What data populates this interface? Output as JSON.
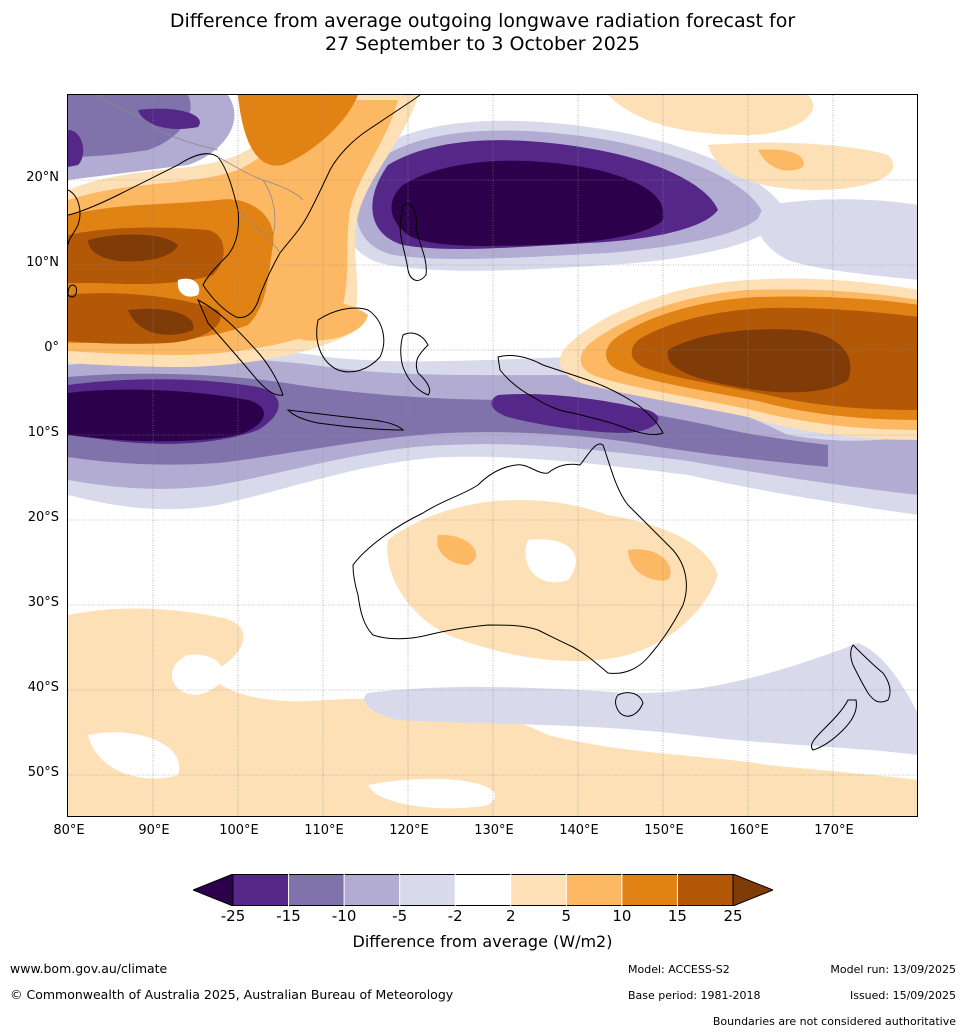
{
  "title": {
    "line1": "Difference from average outgoing longwave radiation forecast for",
    "line2": "27 September to 3 October 2025"
  },
  "map": {
    "lat_labels": [
      "20°N",
      "10°N",
      "0°",
      "10°S",
      "20°S",
      "30°S",
      "40°S",
      "50°S"
    ],
    "lon_labels": [
      "80°E",
      "90°E",
      "100°E",
      "110°E",
      "120°E",
      "130°E",
      "140°E",
      "150°E",
      "160°E",
      "170°E"
    ]
  },
  "colorbar": {
    "ticks": [
      "-25",
      "-15",
      "-10",
      "-5",
      "-2",
      "2",
      "5",
      "10",
      "15",
      "25"
    ],
    "colors": [
      "#2d004b",
      "#542788",
      "#8073ac",
      "#b2abd2",
      "#d8daeb",
      "#ffffff",
      "#fee0b6",
      "#fdb863",
      "#e08214",
      "#b35806",
      "#7f3b08"
    ],
    "label": "Difference from average (W/m2)"
  },
  "footer": {
    "website": "www.bom.gov.au/climate",
    "copyright": "© Commonwealth of Australia 2025, Australian Bureau of Meteorology",
    "model": "Model: ACCESS-S2",
    "base_period": "Base period: 1981-2018",
    "model_run": "Model run: 13/09/2025",
    "issued": "Issued: 15/09/2025",
    "boundaries_note": "Boundaries are not considered authoritative"
  }
}
